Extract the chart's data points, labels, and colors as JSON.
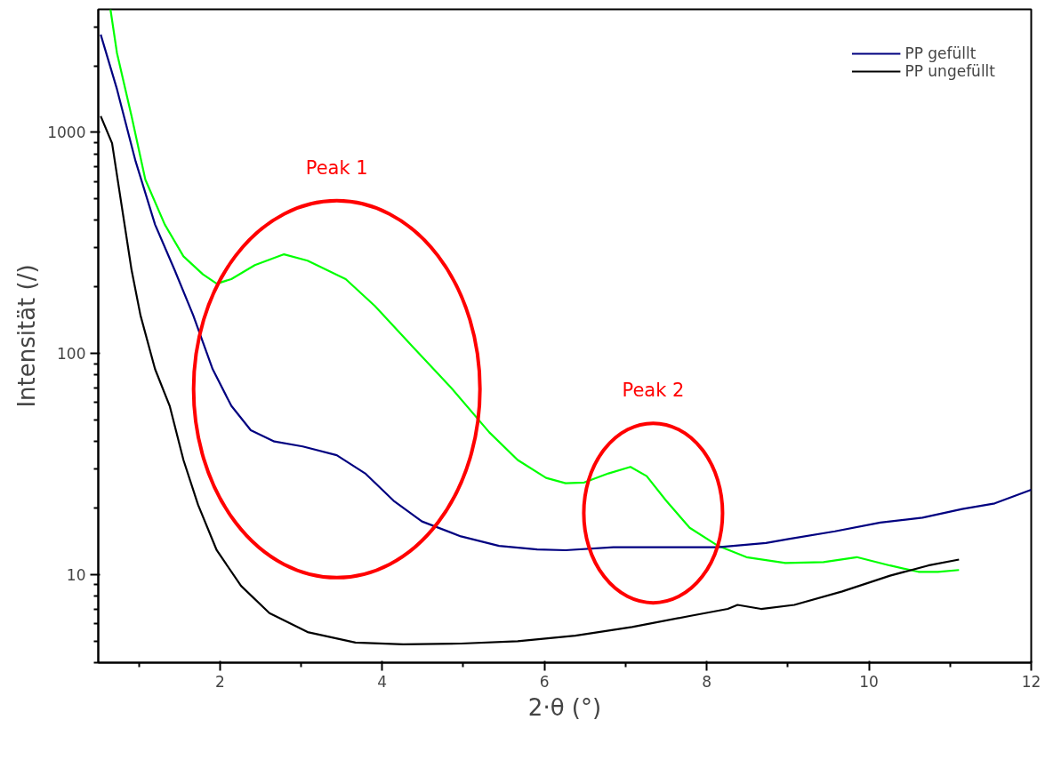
{
  "chart_data": {
    "type": "line",
    "xlabel": "2·θ (°)",
    "ylabel": "Intensität (/)",
    "log": "y",
    "xlim": [
      0.5,
      12
    ],
    "ylim": [
      4,
      3600
    ],
    "xticks": [
      2,
      4,
      6,
      8,
      10,
      12
    ],
    "yticks": [
      10,
      100,
      1000
    ],
    "grid": false,
    "legend": "top right",
    "line_style": "solid",
    "marker": "none",
    "series": [
      {
        "color": "#00ff00",
        "x": [
          0.65,
          0.73,
          0.91,
          1.08,
          1.32,
          1.55,
          1.79,
          1.96,
          2.14,
          2.43,
          2.79,
          3.08,
          3.55,
          3.91,
          4.38,
          4.85,
          5.32,
          5.67,
          6.02,
          6.26,
          6.49,
          6.79,
          7.06,
          7.26,
          7.5,
          7.79,
          8.14,
          8.49,
          8.97,
          9.44,
          9.85,
          10.26,
          10.61,
          10.85,
          11.11
        ],
        "values": [
          3600,
          2290,
          1185,
          612,
          383,
          275,
          228,
          207,
          217,
          251,
          281,
          263,
          217,
          164,
          107,
          70,
          44,
          33,
          27.4,
          25.9,
          26.1,
          28.7,
          30.7,
          27.9,
          21.6,
          16.3,
          13.5,
          12,
          11.3,
          11.4,
          12,
          11,
          10.3,
          10.3,
          10.5
        ]
      },
      {
        "name": "PP gefüllt",
        "color": "#000080",
        "x": [
          0.53,
          0.73,
          0.96,
          1.2,
          1.44,
          1.67,
          1.91,
          2.14,
          2.38,
          2.67,
          3.02,
          3.44,
          3.79,
          4.14,
          4.49,
          4.97,
          5.44,
          5.91,
          6.26,
          6.85,
          7.55,
          8.14,
          8.73,
          9.01,
          9.58,
          10.14,
          10.66,
          11.15,
          11.55,
          12
        ],
        "values": [
          2770,
          1570,
          740,
          383,
          239,
          149,
          85,
          58,
          45,
          40,
          38,
          34.7,
          28.7,
          21.6,
          17.4,
          14.9,
          13.5,
          13,
          12.9,
          13.3,
          13.3,
          13.3,
          13.9,
          14.5,
          15.7,
          17.2,
          18.1,
          19.8,
          21,
          24.2
        ]
      },
      {
        "name": "PP ungefüllt",
        "color": "#000000",
        "x": [
          0.53,
          0.67,
          0.79,
          0.91,
          1.02,
          1.2,
          1.38,
          1.55,
          1.73,
          1.96,
          2.26,
          2.61,
          3.08,
          3.67,
          4.26,
          4.97,
          5.67,
          6.38,
          7.08,
          7.79,
          8.26,
          8.38,
          8.67,
          9.08,
          9.67,
          10.26,
          10.73,
          11.11
        ],
        "values": [
          1185,
          893,
          462,
          239,
          149,
          85,
          58,
          33,
          20.7,
          12.9,
          8.9,
          6.7,
          5.5,
          4.93,
          4.84,
          4.88,
          5.0,
          5.3,
          5.8,
          6.5,
          7.0,
          7.3,
          7.0,
          7.3,
          8.4,
          9.9,
          11,
          11.7
        ]
      }
    ],
    "annotations": [
      "Peak 1",
      "Peak 2"
    ]
  }
}
